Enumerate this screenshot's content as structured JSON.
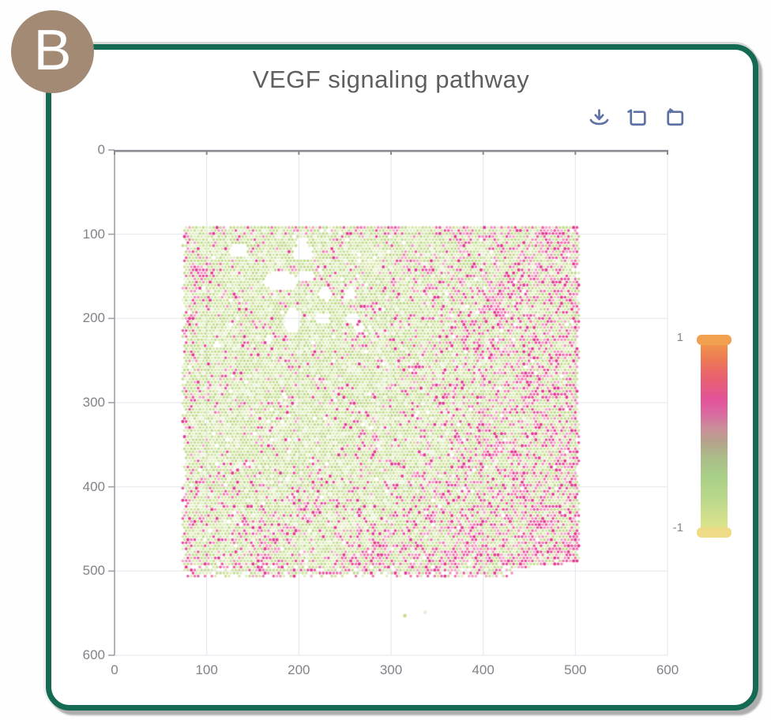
{
  "panel_label": "B",
  "title": "VEGF signaling pathway",
  "toolbar": {
    "icon_color": "#5d71a2",
    "icons": [
      "download-icon",
      "box-select-icon",
      "restore-icon"
    ]
  },
  "colors": {
    "card_border": "#156a54",
    "badge_bg": "#a28a75",
    "title_text": "#5f5f5f",
    "axis_label": "#82828a",
    "grid_line": "#e7e9f0",
    "axis_top": "#8a8a90",
    "axis_left": "#a0a1a9"
  },
  "chart_data": {
    "type": "scatter",
    "title": "VEGF signaling pathway",
    "xlabel": "",
    "ylabel": "",
    "xlim": [
      0,
      600
    ],
    "ylim": [
      0,
      600
    ],
    "y_inverted": true,
    "grid": true,
    "x_ticks": [
      "0",
      "100",
      "200",
      "300",
      "400",
      "500",
      "600"
    ],
    "y_ticks": [
      "0",
      "100",
      "200",
      "300",
      "400",
      "500",
      "600"
    ],
    "colorbar": {
      "max_label": "1",
      "min_label": "-1",
      "range": [
        -1,
        1
      ],
      "cap_top_color": "#f1a04f",
      "cap_bottom_color": "#eedb85",
      "stops": [
        [
          0,
          "#f0924c"
        ],
        [
          0.08,
          "#ed7a56"
        ],
        [
          0.18,
          "#e9606f"
        ],
        [
          0.3,
          "#e25399"
        ],
        [
          0.38,
          "#d96ba1"
        ],
        [
          0.46,
          "#c98f97"
        ],
        [
          0.54,
          "#b4a58a"
        ],
        [
          0.62,
          "#abbd89"
        ],
        [
          0.72,
          "#a8cf87"
        ],
        [
          0.86,
          "#bdd98c"
        ],
        [
          1,
          "#dde38c"
        ]
      ]
    },
    "spots": {
      "x_range": [
        74,
        505
      ],
      "y_range": [
        92,
        509
      ],
      "dx": 3.72,
      "dy": 3.6,
      "dot_radius_px": 1.8,
      "seed": 7,
      "green_colors": [
        "#cfe3a0",
        "#c7de94",
        "#d8e9b0",
        "#c1d98c",
        "#e2eec4"
      ],
      "pink_colors": [
        "#ee74ad",
        "#e75aa1",
        "#f291bf",
        "#e84b9b",
        "#f2a7c8"
      ],
      "deep_pink": "#e23c92",
      "tan_color": "#d8c79f",
      "pale_color": "#edf2df",
      "base_pink_prob": 0.11,
      "right_gradient": {
        "start_x": 290,
        "span": 220,
        "max_add": 0.34
      },
      "bottom_gradient": {
        "start_y": 370,
        "span": 140,
        "max_add": 0.2
      },
      "top_edge": {
        "y": 102,
        "add": 0.1
      },
      "left_edge": {
        "x": 88,
        "add": 0.1
      },
      "clusters": [
        [
          93,
          150,
          16,
          0.55
        ],
        [
          85,
          192,
          12,
          0.35
        ],
        [
          210,
          430,
          22,
          0.3
        ],
        [
          320,
          268,
          18,
          0.22
        ],
        [
          285,
          480,
          18,
          0.3
        ],
        [
          420,
          175,
          35,
          0.18
        ],
        [
          350,
          500,
          28,
          0.22
        ],
        [
          255,
          95,
          20,
          0.18
        ],
        [
          165,
          470,
          20,
          0.2
        ],
        [
          470,
          110,
          25,
          0.2
        ]
      ],
      "holes": [
        [
          135,
          119,
          10,
          8
        ],
        [
          204,
          121,
          11,
          10
        ],
        [
          180,
          156,
          19,
          11
        ],
        [
          208,
          150,
          9,
          7
        ],
        [
          229,
          171,
          7,
          8
        ],
        [
          193,
          202,
          9,
          15
        ],
        [
          226,
          200,
          7,
          7
        ],
        [
          255,
          171,
          6,
          7
        ],
        [
          259,
          200,
          7,
          7
        ],
        [
          267,
          211,
          5,
          5
        ],
        [
          111,
          231,
          4,
          4
        ],
        [
          203,
          108,
          5,
          5
        ],
        [
          167,
          225,
          4,
          4
        ]
      ],
      "outliers": [
        {
          "x": 315,
          "y": 553,
          "color": "#c6dd92"
        },
        {
          "x": 337,
          "y": 549,
          "color": "#e9f0d6"
        }
      ]
    }
  }
}
